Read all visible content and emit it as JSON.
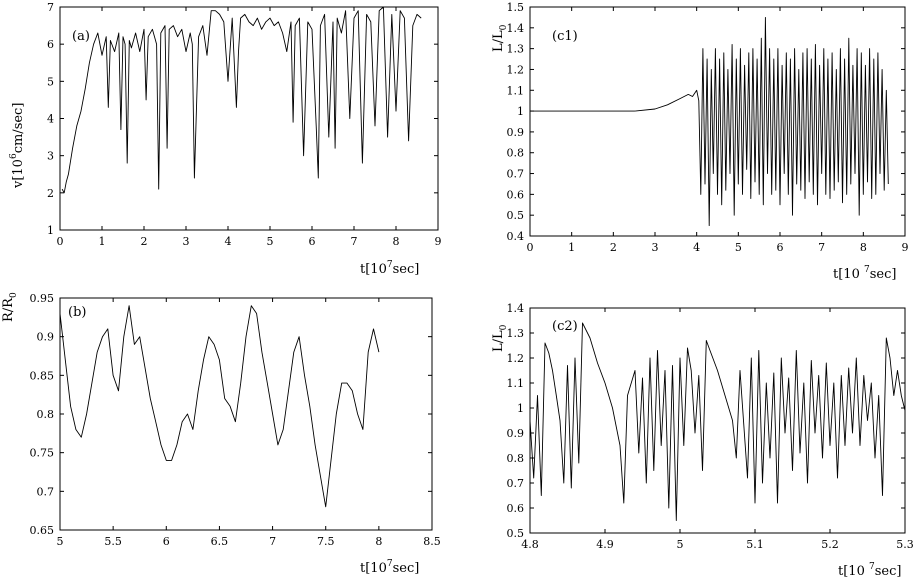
{
  "chart_data": [
    {
      "id": "a",
      "type": "line",
      "panel_label": "(a)",
      "xlabel": {
        "pre": "t[10",
        "sup": "7",
        "post": "sec]"
      },
      "ylabel": {
        "pre": "v[10",
        "sup": "6",
        "post": "cm/sec]"
      },
      "xlim": [
        0,
        9
      ],
      "ylim": [
        1,
        7
      ],
      "xticks": [
        "0",
        "1",
        "2",
        "3",
        "4",
        "5",
        "6",
        "7",
        "8",
        "9"
      ],
      "yticks": [
        "1",
        "2",
        "3",
        "4",
        "5",
        "6",
        "7"
      ],
      "series": [
        {
          "x": [
            0.05,
            0.1,
            0.15,
            0.2,
            0.3,
            0.4,
            0.5,
            0.6,
            0.7,
            0.8,
            0.9,
            1.0,
            1.1,
            1.15,
            1.2,
            1.3,
            1.4,
            1.45,
            1.5,
            1.55,
            1.6,
            1.65,
            1.7,
            1.8,
            1.9,
            2.0,
            2.05,
            2.1,
            2.2,
            2.3,
            2.35,
            2.4,
            2.5,
            2.55,
            2.6,
            2.7,
            2.8,
            2.9,
            3.0,
            3.1,
            3.15,
            3.2,
            3.3,
            3.4,
            3.5,
            3.6,
            3.65,
            3.7,
            3.8,
            3.9,
            4.0,
            4.1,
            4.2,
            4.25,
            4.3,
            4.4,
            4.5,
            4.6,
            4.7,
            4.8,
            4.9,
            5.0,
            5.1,
            5.2,
            5.3,
            5.4,
            5.5,
            5.55,
            5.6,
            5.7,
            5.8,
            5.9,
            6.0,
            6.1,
            6.15,
            6.2,
            6.3,
            6.4,
            6.5,
            6.55,
            6.6,
            6.7,
            6.8,
            6.9,
            7.0,
            7.1,
            7.2,
            7.3,
            7.4,
            7.5,
            7.6,
            7.7,
            7.8,
            7.9,
            8.0,
            8.1,
            8.2,
            8.3,
            8.4,
            8.5,
            8.6
          ],
          "y": [
            2.1,
            2.0,
            2.3,
            2.5,
            3.2,
            3.8,
            4.2,
            4.8,
            5.5,
            6.0,
            6.3,
            5.7,
            6.2,
            4.3,
            6.1,
            5.8,
            6.3,
            3.7,
            6.2,
            6.0,
            2.8,
            6.1,
            5.9,
            6.3,
            5.8,
            6.4,
            4.5,
            6.2,
            6.4,
            6.0,
            2.1,
            6.3,
            6.5,
            3.2,
            6.4,
            6.5,
            6.2,
            6.4,
            5.8,
            6.3,
            6.0,
            2.4,
            6.2,
            6.5,
            5.7,
            6.9,
            6.9,
            6.9,
            6.8,
            6.6,
            5.0,
            6.7,
            4.3,
            5.8,
            6.7,
            6.8,
            6.6,
            6.5,
            6.7,
            6.4,
            6.6,
            6.7,
            6.5,
            6.6,
            6.3,
            5.8,
            6.6,
            3.9,
            6.5,
            6.7,
            3.0,
            6.6,
            6.4,
            3.8,
            2.4,
            6.5,
            6.8,
            3.5,
            6.6,
            3.2,
            6.7,
            6.3,
            6.9,
            4.0,
            6.7,
            6.9,
            2.8,
            6.8,
            6.6,
            3.8,
            6.9,
            7.0,
            3.5,
            6.8,
            4.2,
            6.9,
            6.7,
            3.4,
            6.5,
            6.8,
            6.7
          ]
        }
      ]
    },
    {
      "id": "b",
      "type": "line",
      "panel_label": "(b)",
      "xlabel": {
        "pre": "t[10",
        "sup": "7",
        "post": "sec]"
      },
      "ylabel": {
        "pre": "R/R",
        "sub": "0",
        "post": ""
      },
      "xlim": [
        5,
        8.5
      ],
      "ylim": [
        0.65,
        0.95
      ],
      "xticks": [
        "5",
        "5.5",
        "6",
        "6.5",
        "7",
        "7.5",
        "8",
        "8.5"
      ],
      "yticks": [
        "0.65",
        "0.7",
        "0.75",
        "0.8",
        "0.85",
        "0.9",
        "0.95"
      ],
      "series": [
        {
          "x": [
            5.0,
            5.05,
            5.1,
            5.15,
            5.2,
            5.25,
            5.3,
            5.35,
            5.4,
            5.45,
            5.5,
            5.55,
            5.6,
            5.65,
            5.7,
            5.75,
            5.8,
            5.85,
            5.9,
            5.95,
            6.0,
            6.05,
            6.1,
            6.15,
            6.2,
            6.25,
            6.3,
            6.35,
            6.4,
            6.45,
            6.5,
            6.55,
            6.6,
            6.65,
            6.7,
            6.75,
            6.8,
            6.85,
            6.9,
            6.95,
            7.0,
            7.05,
            7.1,
            7.15,
            7.2,
            7.25,
            7.3,
            7.35,
            7.4,
            7.45,
            7.5,
            7.55,
            7.6,
            7.65,
            7.7,
            7.75,
            7.8,
            7.85,
            7.9,
            7.95,
            8.0
          ],
          "y": [
            0.93,
            0.87,
            0.81,
            0.78,
            0.77,
            0.8,
            0.84,
            0.88,
            0.9,
            0.91,
            0.85,
            0.83,
            0.9,
            0.94,
            0.89,
            0.9,
            0.86,
            0.82,
            0.79,
            0.76,
            0.74,
            0.74,
            0.76,
            0.79,
            0.8,
            0.78,
            0.83,
            0.87,
            0.9,
            0.89,
            0.87,
            0.82,
            0.81,
            0.79,
            0.84,
            0.9,
            0.94,
            0.93,
            0.88,
            0.84,
            0.8,
            0.76,
            0.78,
            0.83,
            0.88,
            0.9,
            0.85,
            0.81,
            0.76,
            0.72,
            0.68,
            0.74,
            0.8,
            0.84,
            0.84,
            0.83,
            0.8,
            0.78,
            0.88,
            0.91,
            0.88
          ]
        }
      ]
    },
    {
      "id": "c1",
      "type": "line",
      "panel_label": "(c1)",
      "xlabel": {
        "pre": "t[10 ",
        "sup": "7",
        "post": "sec]"
      },
      "ylabel": {
        "pre": "L/L",
        "sub": "0",
        "post": ""
      },
      "xlim": [
        0,
        9
      ],
      "ylim": [
        0.4,
        1.5
      ],
      "xticks": [
        "0",
        "1",
        "2",
        "3",
        "4",
        "5",
        "6",
        "7",
        "8",
        "9"
      ],
      "yticks": [
        "0.4",
        "0.5",
        "0.6",
        "0.7",
        "0.8",
        "0.9",
        "1",
        "1.1",
        "1.2",
        "1.3",
        "1.4",
        "1.5"
      ],
      "series": [
        {
          "x": [
            0.0,
            0.5,
            1.0,
            1.5,
            2.0,
            2.5,
            3.0,
            3.3,
            3.6,
            3.8,
            3.9,
            4.0,
            4.05,
            4.1,
            4.15,
            4.2,
            4.25,
            4.3,
            4.35,
            4.4,
            4.45,
            4.5,
            4.55,
            4.6,
            4.65,
            4.7,
            4.75,
            4.8,
            4.85,
            4.9,
            4.95,
            5.0,
            5.05,
            5.1,
            5.15,
            5.2,
            5.25,
            5.3,
            5.35,
            5.4,
            5.45,
            5.5,
            5.55,
            5.6,
            5.65,
            5.7,
            5.75,
            5.8,
            5.85,
            5.9,
            5.95,
            6.0,
            6.05,
            6.1,
            6.15,
            6.2,
            6.25,
            6.3,
            6.35,
            6.4,
            6.45,
            6.5,
            6.55,
            6.6,
            6.65,
            6.7,
            6.75,
            6.8,
            6.85,
            6.9,
            6.95,
            7.0,
            7.05,
            7.1,
            7.15,
            7.2,
            7.25,
            7.3,
            7.35,
            7.4,
            7.45,
            7.5,
            7.55,
            7.6,
            7.65,
            7.7,
            7.75,
            7.8,
            7.85,
            7.9,
            7.95,
            8.0,
            8.05,
            8.1,
            8.15,
            8.2,
            8.25,
            8.3,
            8.35,
            8.4,
            8.45,
            8.5,
            8.55,
            8.6
          ],
          "y": [
            1.0,
            1.0,
            1.0,
            1.0,
            1.0,
            1.0,
            1.01,
            1.03,
            1.06,
            1.08,
            1.07,
            1.1,
            1.05,
            0.6,
            1.3,
            0.65,
            1.25,
            0.45,
            1.2,
            0.7,
            1.3,
            0.6,
            1.25,
            0.55,
            1.28,
            0.62,
            1.2,
            0.7,
            1.32,
            0.5,
            1.25,
            0.65,
            1.3,
            0.6,
            1.22,
            0.72,
            1.28,
            0.58,
            1.3,
            0.66,
            1.25,
            0.6,
            1.35,
            0.55,
            1.45,
            0.7,
            1.3,
            0.6,
            1.25,
            0.62,
            1.3,
            0.55,
            1.22,
            0.7,
            1.28,
            0.6,
            1.25,
            0.5,
            1.3,
            0.65,
            1.2,
            0.62,
            1.28,
            0.58,
            1.3,
            0.66,
            1.25,
            0.6,
            1.32,
            0.55,
            1.22,
            0.7,
            1.3,
            0.6,
            1.25,
            0.58,
            1.28,
            0.62,
            1.2,
            0.66,
            1.3,
            0.56,
            1.25,
            0.6,
            1.35,
            0.65,
            1.22,
            0.7,
            1.3,
            0.5,
            1.28,
            0.6,
            1.22,
            0.66,
            1.3,
            0.58,
            1.25,
            0.6,
            1.28,
            0.7,
            1.2,
            0.62,
            1.1,
            0.65
          ]
        }
      ]
    },
    {
      "id": "c2",
      "type": "line",
      "panel_label": "(c2)",
      "xlabel": {
        "pre": "t[10 ",
        "sup": "7",
        "post": "sec]"
      },
      "ylabel": {
        "pre": "L/L",
        "sub": "0",
        "post": ""
      },
      "xlim": [
        4.8,
        5.3
      ],
      "ylim": [
        0.5,
        1.4
      ],
      "xticks": [
        "4.8",
        "4.9",
        "5",
        "5.1",
        "5.2",
        "5.3"
      ],
      "yticks": [
        "0.5",
        "0.6",
        "0.7",
        "0.8",
        "0.9",
        "1",
        "1.1",
        "1.2",
        "1.3",
        "1.4"
      ],
      "series": [
        {
          "x": [
            4.8,
            4.805,
            4.81,
            4.815,
            4.82,
            4.825,
            4.83,
            4.835,
            4.84,
            4.845,
            4.85,
            4.855,
            4.86,
            4.865,
            4.87,
            4.88,
            4.89,
            4.9,
            4.91,
            4.92,
            4.925,
            4.93,
            4.94,
            4.945,
            4.95,
            4.955,
            4.96,
            4.965,
            4.97,
            4.975,
            4.98,
            4.985,
            4.99,
            4.995,
            5.0,
            5.005,
            5.01,
            5.015,
            5.02,
            5.025,
            5.03,
            5.035,
            5.04,
            5.05,
            5.06,
            5.07,
            5.075,
            5.08,
            5.09,
            5.095,
            5.1,
            5.105,
            5.11,
            5.115,
            5.12,
            5.125,
            5.13,
            5.135,
            5.14,
            5.145,
            5.15,
            5.155,
            5.16,
            5.165,
            5.17,
            5.175,
            5.18,
            5.185,
            5.19,
            5.195,
            5.2,
            5.205,
            5.21,
            5.215,
            5.22,
            5.225,
            5.23,
            5.235,
            5.24,
            5.245,
            5.25,
            5.255,
            5.26,
            5.265,
            5.27,
            5.275,
            5.28,
            5.285,
            5.29,
            5.295,
            5.3
          ],
          "y": [
            0.95,
            0.72,
            1.05,
            0.65,
            1.26,
            1.22,
            1.15,
            1.05,
            0.95,
            0.7,
            1.17,
            0.68,
            1.2,
            0.78,
            1.34,
            1.28,
            1.18,
            1.1,
            1.0,
            0.85,
            0.62,
            1.05,
            1.15,
            0.82,
            1.12,
            0.7,
            1.2,
            0.75,
            1.23,
            0.85,
            1.15,
            0.6,
            1.17,
            0.55,
            1.2,
            0.85,
            1.24,
            1.15,
            0.9,
            1.13,
            0.75,
            1.27,
            1.23,
            1.15,
            1.05,
            0.95,
            0.8,
            1.15,
            0.72,
            1.2,
            0.62,
            1.23,
            0.7,
            1.1,
            0.8,
            1.14,
            0.62,
            1.2,
            0.9,
            1.12,
            0.75,
            1.23,
            0.82,
            1.1,
            0.7,
            1.19,
            0.9,
            1.13,
            0.8,
            1.18,
            0.85,
            1.1,
            0.72,
            1.13,
            0.85,
            1.16,
            0.9,
            1.2,
            0.85,
            1.13,
            0.95,
            1.1,
            0.8,
            1.05,
            0.65,
            1.28,
            1.2,
            1.05,
            1.15,
            1.05,
            0.99
          ]
        }
      ]
    }
  ]
}
